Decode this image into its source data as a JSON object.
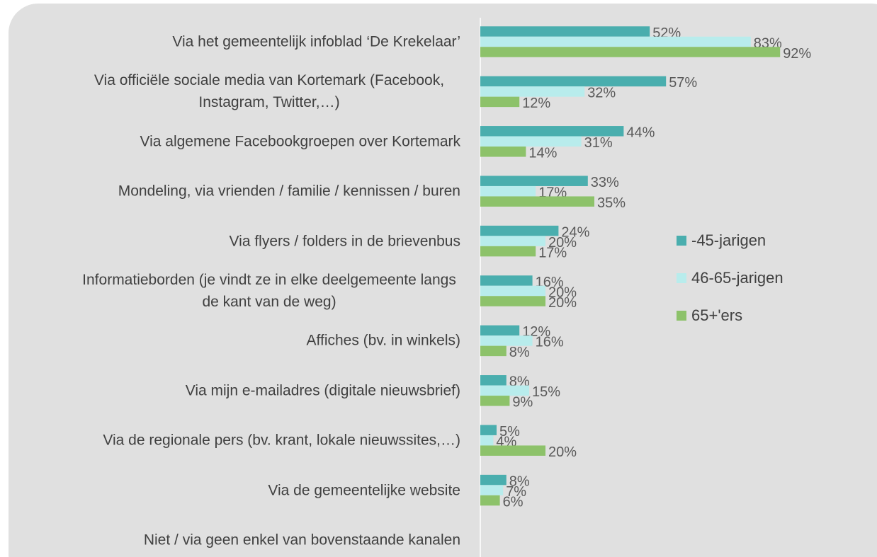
{
  "chart_data": {
    "type": "bar",
    "orientation": "horizontal",
    "categories": [
      "Via het gemeentelijk infoblad ‘De Krekelaar’",
      "Via officiële sociale media van Kortemark (Facebook, Instagram, Twitter,…)",
      "Via algemene Facebookgroepen over Kortemark",
      "Mondeling, via vrienden / familie / kennissen / buren",
      "Via flyers / folders in de brievenbus",
      "Informatieborden (je vindt ze in elke deelgemeente langs de kant van de weg)",
      "Affiches (bv. in winkels)",
      "Via mijn e-mailadres (digitale nieuwsbrief)",
      "Via de regionale pers (bv. krant, lokale nieuwssites,…)",
      "Via de gemeentelijke website",
      "Niet / via geen enkel van bovenstaande kanalen"
    ],
    "series": [
      {
        "name": "-45-jarigen",
        "color": "#4aaeae",
        "values": [
          52,
          57,
          44,
          33,
          24,
          16,
          12,
          8,
          5,
          8,
          null
        ],
        "value_labels": [
          "52%",
          "57%",
          "44%",
          "33%",
          "24%",
          "16%",
          "12%",
          "8%",
          "5%",
          "8%",
          null
        ]
      },
      {
        "name": "46-65-jarigen",
        "color": "#b8ecec",
        "values": [
          83,
          32,
          31,
          17,
          20,
          20,
          16,
          15,
          4,
          7,
          null
        ],
        "value_labels": [
          "83%",
          "32%",
          "31%",
          "17%",
          "20%",
          "20%",
          "16%",
          "15%",
          "4%",
          "7%",
          null
        ]
      },
      {
        "name": "65+'ers",
        "color": "#8dc26a",
        "values": [
          92,
          12,
          14,
          35,
          17,
          20,
          8,
          9,
          20,
          6,
          null
        ],
        "value_labels": [
          "92%",
          "12%",
          "14%",
          "35%",
          "17%",
          "20%",
          "8%",
          "9%",
          "20%",
          "6%",
          null
        ]
      }
    ],
    "legend": "right"
  }
}
